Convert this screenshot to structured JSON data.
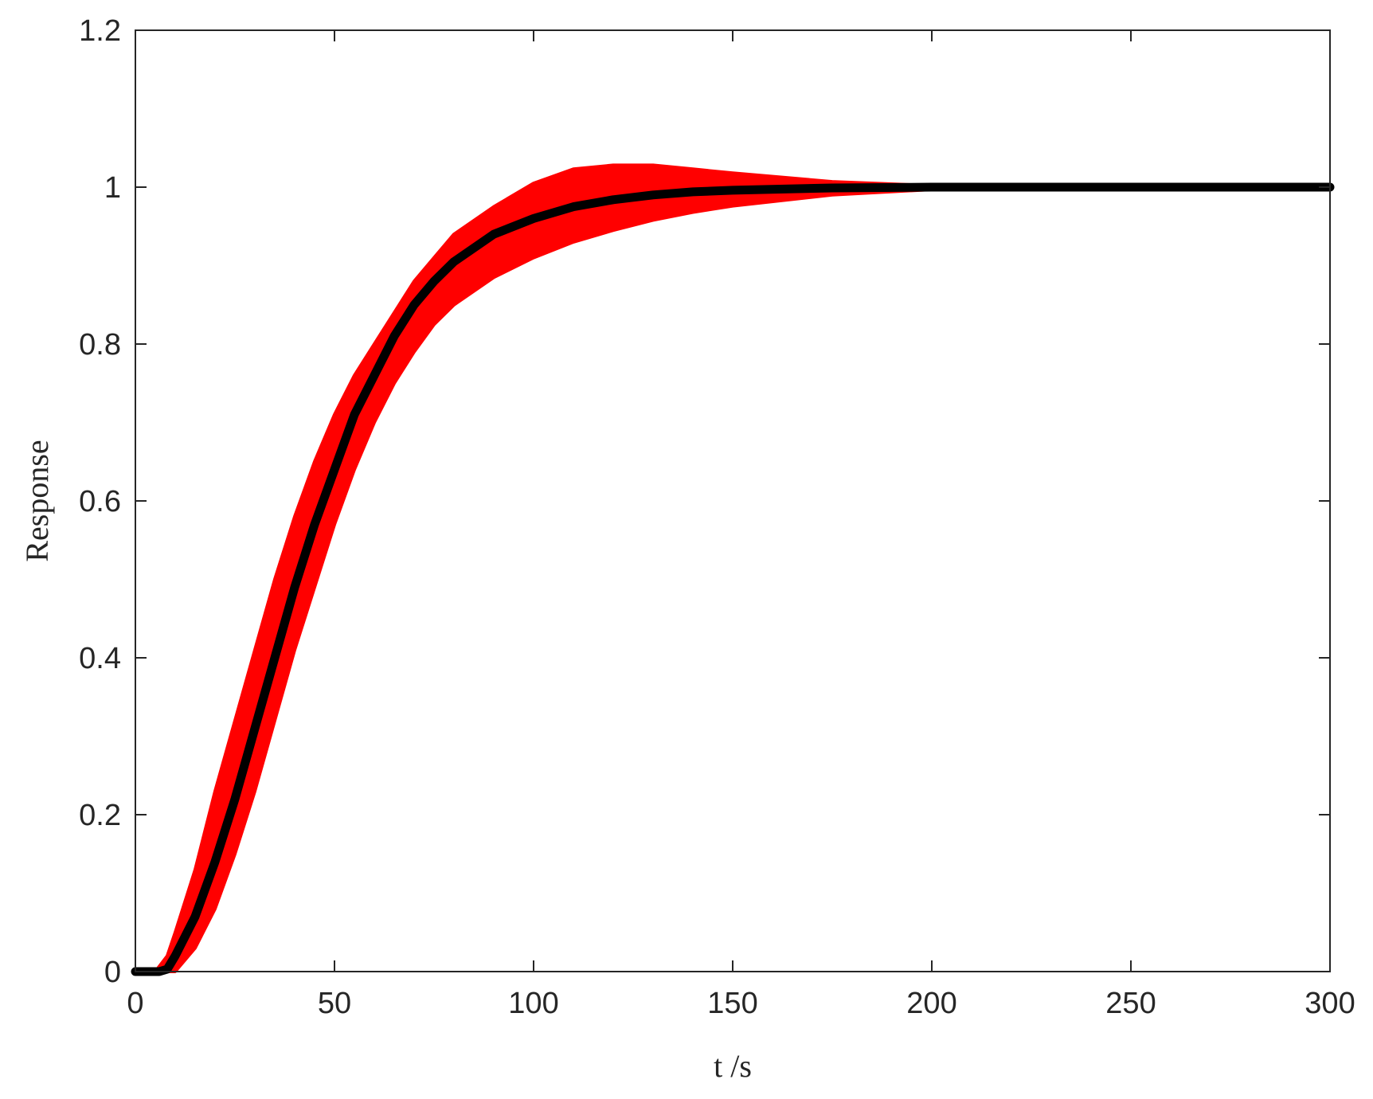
{
  "chart_data": {
    "type": "line",
    "xlabel": "t /s",
    "ylabel": "Response",
    "xlim": [
      0,
      300
    ],
    "ylim": [
      0,
      1.2
    ],
    "x_ticks": [
      0,
      50,
      100,
      150,
      200,
      250,
      300
    ],
    "y_ticks": [
      0,
      0.2,
      0.4,
      0.6,
      0.8,
      1,
      1.2
    ],
    "x_tick_labels": [
      "0",
      "50",
      "100",
      "150",
      "200",
      "250",
      "300"
    ],
    "y_tick_labels": [
      "0",
      "0.2",
      "0.4",
      "0.6",
      "0.8",
      "1",
      "1.2"
    ],
    "grid": false,
    "colors": {
      "band": "#ff0000",
      "nominal": "#000000",
      "axes": "#262626"
    },
    "series": [
      {
        "role": "nominal",
        "x": [
          0,
          6,
          8,
          10,
          15,
          20,
          25,
          30,
          35,
          40,
          45,
          50,
          55,
          60,
          65,
          70,
          75,
          80,
          90,
          100,
          110,
          120,
          130,
          140,
          150,
          175,
          200,
          250,
          300
        ],
        "y": [
          0,
          0,
          0.003,
          0.02,
          0.07,
          0.14,
          0.22,
          0.31,
          0.4,
          0.49,
          0.57,
          0.64,
          0.71,
          0.76,
          0.81,
          0.85,
          0.88,
          0.905,
          0.94,
          0.96,
          0.975,
          0.984,
          0.99,
          0.994,
          0.996,
          0.999,
          1.0,
          1.0,
          1.0
        ]
      },
      {
        "role": "band-upper",
        "x": [
          0,
          5,
          8,
          10,
          15,
          20,
          25,
          30,
          35,
          40,
          45,
          50,
          55,
          60,
          65,
          70,
          75,
          80,
          90,
          100,
          110,
          120,
          130,
          140,
          150,
          175,
          200,
          250,
          300
        ],
        "y": [
          0,
          0,
          0.02,
          0.05,
          0.13,
          0.23,
          0.32,
          0.41,
          0.5,
          0.58,
          0.65,
          0.71,
          0.76,
          0.8,
          0.84,
          0.88,
          0.91,
          0.94,
          0.975,
          1.005,
          1.023,
          1.028,
          1.028,
          1.023,
          1.018,
          1.007,
          1.002,
          1.001,
          1.001
        ]
      },
      {
        "role": "band-lower",
        "x": [
          0,
          8,
          10,
          15,
          20,
          25,
          30,
          35,
          40,
          45,
          50,
          55,
          60,
          65,
          70,
          75,
          80,
          90,
          100,
          110,
          120,
          130,
          140,
          150,
          175,
          200,
          250,
          300
        ],
        "y": [
          0,
          0,
          0,
          0.03,
          0.08,
          0.15,
          0.23,
          0.32,
          0.41,
          0.49,
          0.57,
          0.64,
          0.7,
          0.75,
          0.79,
          0.825,
          0.85,
          0.885,
          0.91,
          0.93,
          0.945,
          0.958,
          0.968,
          0.976,
          0.99,
          0.997,
          0.999,
          0.999
        ]
      }
    ]
  }
}
